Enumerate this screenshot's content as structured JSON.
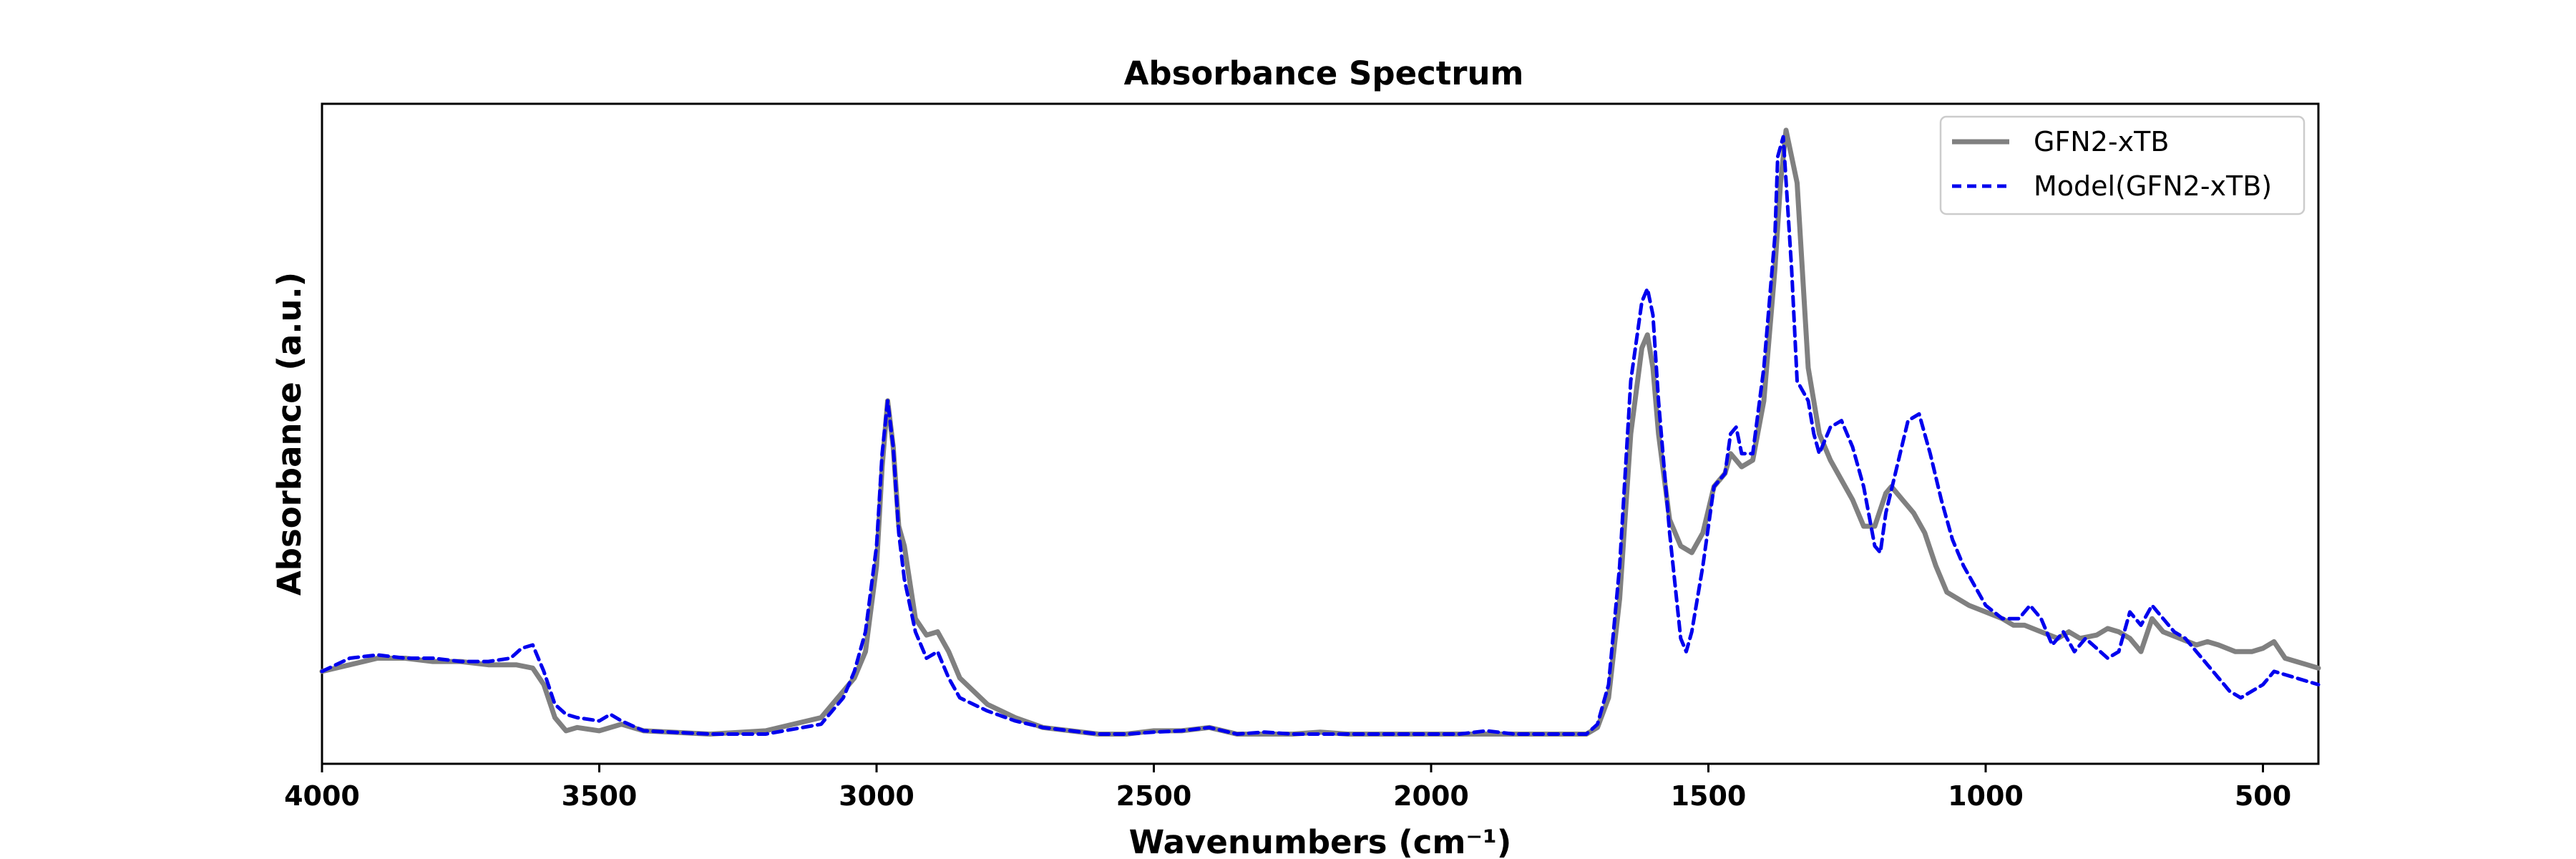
{
  "chart_data": {
    "type": "line",
    "title": "Absorbance Spectrum",
    "xlabel": "Wavenumbers (cm⁻¹)",
    "ylabel": "Absorbance (a.u.)",
    "xlim": [
      4000,
      400
    ],
    "ylim": [
      0,
      1
    ],
    "x_inverted": true,
    "x_ticks": [
      4000,
      3500,
      3000,
      2500,
      2000,
      1500,
      1000,
      500
    ],
    "x_tick_labels": [
      "4000",
      "3500",
      "3000",
      "2500",
      "2000",
      "1500",
      "1000",
      "500"
    ],
    "y_ticks_shown": false,
    "grid": false,
    "legend_position": "top-right",
    "colors": {
      "gfn2": "#808080",
      "model": "#0000ee"
    },
    "series": [
      {
        "name": "GFN2-xTB",
        "style": "solid",
        "x": [
          4000,
          3950,
          3900,
          3850,
          3800,
          3750,
          3700,
          3650,
          3620,
          3600,
          3580,
          3560,
          3540,
          3500,
          3460,
          3420,
          3300,
          3200,
          3100,
          3060,
          3040,
          3020,
          3000,
          2990,
          2980,
          2970,
          2960,
          2950,
          2930,
          2910,
          2890,
          2870,
          2850,
          2800,
          2750,
          2700,
          2650,
          2600,
          2550,
          2500,
          2450,
          2400,
          2350,
          2300,
          2250,
          2200,
          2150,
          2100,
          2050,
          2000,
          1950,
          1900,
          1850,
          1800,
          1750,
          1720,
          1700,
          1680,
          1660,
          1640,
          1620,
          1610,
          1600,
          1590,
          1570,
          1550,
          1530,
          1510,
          1490,
          1470,
          1460,
          1450,
          1440,
          1420,
          1400,
          1380,
          1370,
          1360,
          1350,
          1340,
          1320,
          1300,
          1280,
          1260,
          1240,
          1220,
          1200,
          1180,
          1170,
          1150,
          1130,
          1110,
          1090,
          1070,
          1050,
          1030,
          1000,
          970,
          950,
          930,
          900,
          870,
          850,
          830,
          800,
          780,
          760,
          740,
          720,
          700,
          680,
          650,
          620,
          600,
          580,
          550,
          520,
          500,
          480,
          460,
          440,
          420,
          400
        ],
        "y": [
          0.14,
          0.15,
          0.16,
          0.16,
          0.155,
          0.155,
          0.15,
          0.15,
          0.145,
          0.12,
          0.07,
          0.05,
          0.055,
          0.05,
          0.06,
          0.05,
          0.045,
          0.05,
          0.07,
          0.11,
          0.13,
          0.17,
          0.3,
          0.45,
          0.55,
          0.48,
          0.36,
          0.33,
          0.22,
          0.195,
          0.2,
          0.17,
          0.13,
          0.09,
          0.07,
          0.055,
          0.05,
          0.045,
          0.045,
          0.05,
          0.05,
          0.055,
          0.045,
          0.045,
          0.045,
          0.048,
          0.045,
          0.045,
          0.045,
          0.045,
          0.045,
          0.045,
          0.045,
          0.045,
          0.045,
          0.045,
          0.055,
          0.1,
          0.25,
          0.5,
          0.63,
          0.65,
          0.6,
          0.5,
          0.37,
          0.33,
          0.32,
          0.35,
          0.42,
          0.44,
          0.47,
          0.46,
          0.45,
          0.46,
          0.55,
          0.75,
          0.88,
          0.96,
          0.92,
          0.88,
          0.6,
          0.5,
          0.46,
          0.43,
          0.4,
          0.36,
          0.36,
          0.41,
          0.42,
          0.4,
          0.38,
          0.35,
          0.3,
          0.26,
          0.25,
          0.24,
          0.23,
          0.22,
          0.21,
          0.21,
          0.2,
          0.19,
          0.2,
          0.19,
          0.195,
          0.205,
          0.2,
          0.19,
          0.17,
          0.22,
          0.2,
          0.19,
          0.18,
          0.185,
          0.18,
          0.17,
          0.17,
          0.175,
          0.185,
          0.16,
          0.155,
          0.15,
          0.145
        ]
      },
      {
        "name": "Model(GFN2-xTB)",
        "style": "dashed",
        "x": [
          4000,
          3950,
          3900,
          3850,
          3800,
          3750,
          3700,
          3660,
          3640,
          3620,
          3600,
          3580,
          3560,
          3540,
          3500,
          3480,
          3460,
          3420,
          3300,
          3200,
          3100,
          3060,
          3040,
          3020,
          3000,
          2990,
          2980,
          2970,
          2960,
          2950,
          2930,
          2910,
          2890,
          2870,
          2850,
          2800,
          2750,
          2700,
          2650,
          2600,
          2550,
          2500,
          2450,
          2400,
          2350,
          2300,
          2250,
          2200,
          2150,
          2100,
          2050,
          2000,
          1950,
          1900,
          1850,
          1800,
          1750,
          1720,
          1700,
          1680,
          1660,
          1640,
          1620,
          1610,
          1600,
          1590,
          1570,
          1550,
          1540,
          1530,
          1510,
          1490,
          1470,
          1460,
          1450,
          1440,
          1420,
          1400,
          1380,
          1375,
          1365,
          1350,
          1340,
          1320,
          1310,
          1300,
          1280,
          1260,
          1240,
          1220,
          1200,
          1190,
          1180,
          1160,
          1140,
          1120,
          1100,
          1080,
          1060,
          1040,
          1020,
          1000,
          970,
          940,
          920,
          900,
          880,
          860,
          840,
          820,
          800,
          780,
          760,
          740,
          720,
          700,
          680,
          660,
          640,
          620,
          600,
          580,
          560,
          540,
          520,
          500,
          480,
          460,
          440,
          420,
          400
        ],
        "y": [
          0.14,
          0.16,
          0.165,
          0.16,
          0.16,
          0.155,
          0.155,
          0.16,
          0.175,
          0.18,
          0.14,
          0.09,
          0.075,
          0.07,
          0.065,
          0.075,
          0.065,
          0.05,
          0.045,
          0.045,
          0.06,
          0.1,
          0.14,
          0.2,
          0.33,
          0.47,
          0.55,
          0.48,
          0.35,
          0.28,
          0.2,
          0.16,
          0.17,
          0.13,
          0.1,
          0.08,
          0.065,
          0.055,
          0.05,
          0.045,
          0.045,
          0.048,
          0.05,
          0.055,
          0.045,
          0.048,
          0.045,
          0.045,
          0.045,
          0.045,
          0.045,
          0.045,
          0.045,
          0.05,
          0.045,
          0.045,
          0.045,
          0.045,
          0.06,
          0.12,
          0.3,
          0.58,
          0.7,
          0.72,
          0.68,
          0.55,
          0.35,
          0.19,
          0.17,
          0.2,
          0.3,
          0.42,
          0.44,
          0.5,
          0.51,
          0.47,
          0.47,
          0.6,
          0.8,
          0.92,
          0.95,
          0.75,
          0.58,
          0.55,
          0.5,
          0.47,
          0.51,
          0.52,
          0.48,
          0.42,
          0.33,
          0.32,
          0.38,
          0.45,
          0.52,
          0.53,
          0.47,
          0.4,
          0.34,
          0.3,
          0.27,
          0.24,
          0.22,
          0.22,
          0.24,
          0.22,
          0.18,
          0.2,
          0.17,
          0.19,
          0.175,
          0.16,
          0.17,
          0.23,
          0.21,
          0.24,
          0.22,
          0.2,
          0.19,
          0.17,
          0.15,
          0.13,
          0.11,
          0.1,
          0.11,
          0.12,
          0.14,
          0.135,
          0.13,
          0.125,
          0.12
        ]
      }
    ]
  }
}
